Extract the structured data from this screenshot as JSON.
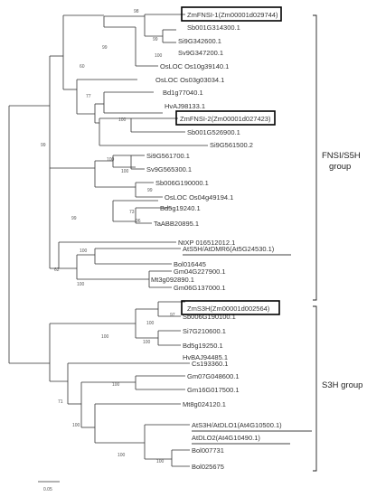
{
  "leaves": [
    "ZmFNSI-1(Zm00001d029744)",
    "Sb001G314300.1",
    "Si9G342600.1",
    "Sv9G347200.1",
    "OsLOC Os10g39140.1",
    "OsLOC Os03g03034.1",
    "Bd1g77040.1",
    "HvAJ98133.1",
    "ZmFNSI-2(Zm00001d027423)",
    "Sb001G526900.1",
    "Si9G561500.2",
    "Si9G561700.1",
    "Sv9G565300.1",
    "Sb006G190000.1",
    "OsLOC Os04g49194.1",
    "Bd5g19240.1",
    "TaABB20895.1",
    "NtXP 016512012.1",
    "AtS5H/AtDMR6(At5G24530.1)",
    "Bol016445",
    "Mt3g092890.1",
    "Gm04G227900.1",
    "Gm06G137000.1",
    "ZmS3H(Zm00001d002564)",
    "Sb006G190100.1",
    "Si7G210600.1",
    "Bd5g19250.1",
    "HvBAJ94485.1",
    "Cs193360.1",
    "Gm07G048600.1",
    "Gm16G017500.1",
    "Mt8g024120.1",
    "AtS3H/AtDLO1(At4G10500.1)",
    "AtDLO2(At4G10490.1)",
    "Bol007731",
    "Bol025675"
  ],
  "bootstrap": [
    "98",
    "99",
    "100",
    "99",
    "60",
    "77",
    "100",
    "99",
    "100",
    "100",
    "99",
    "73",
    "96",
    "99",
    "100",
    "62",
    "100",
    "97",
    "100",
    "100",
    "100",
    "100",
    "71",
    "100",
    "100",
    "100"
  ],
  "groups": {
    "fnsi": [
      "FNSI/S5H",
      "group"
    ],
    "s3h": "S3H group"
  },
  "scale": {
    "value": "0.05"
  }
}
